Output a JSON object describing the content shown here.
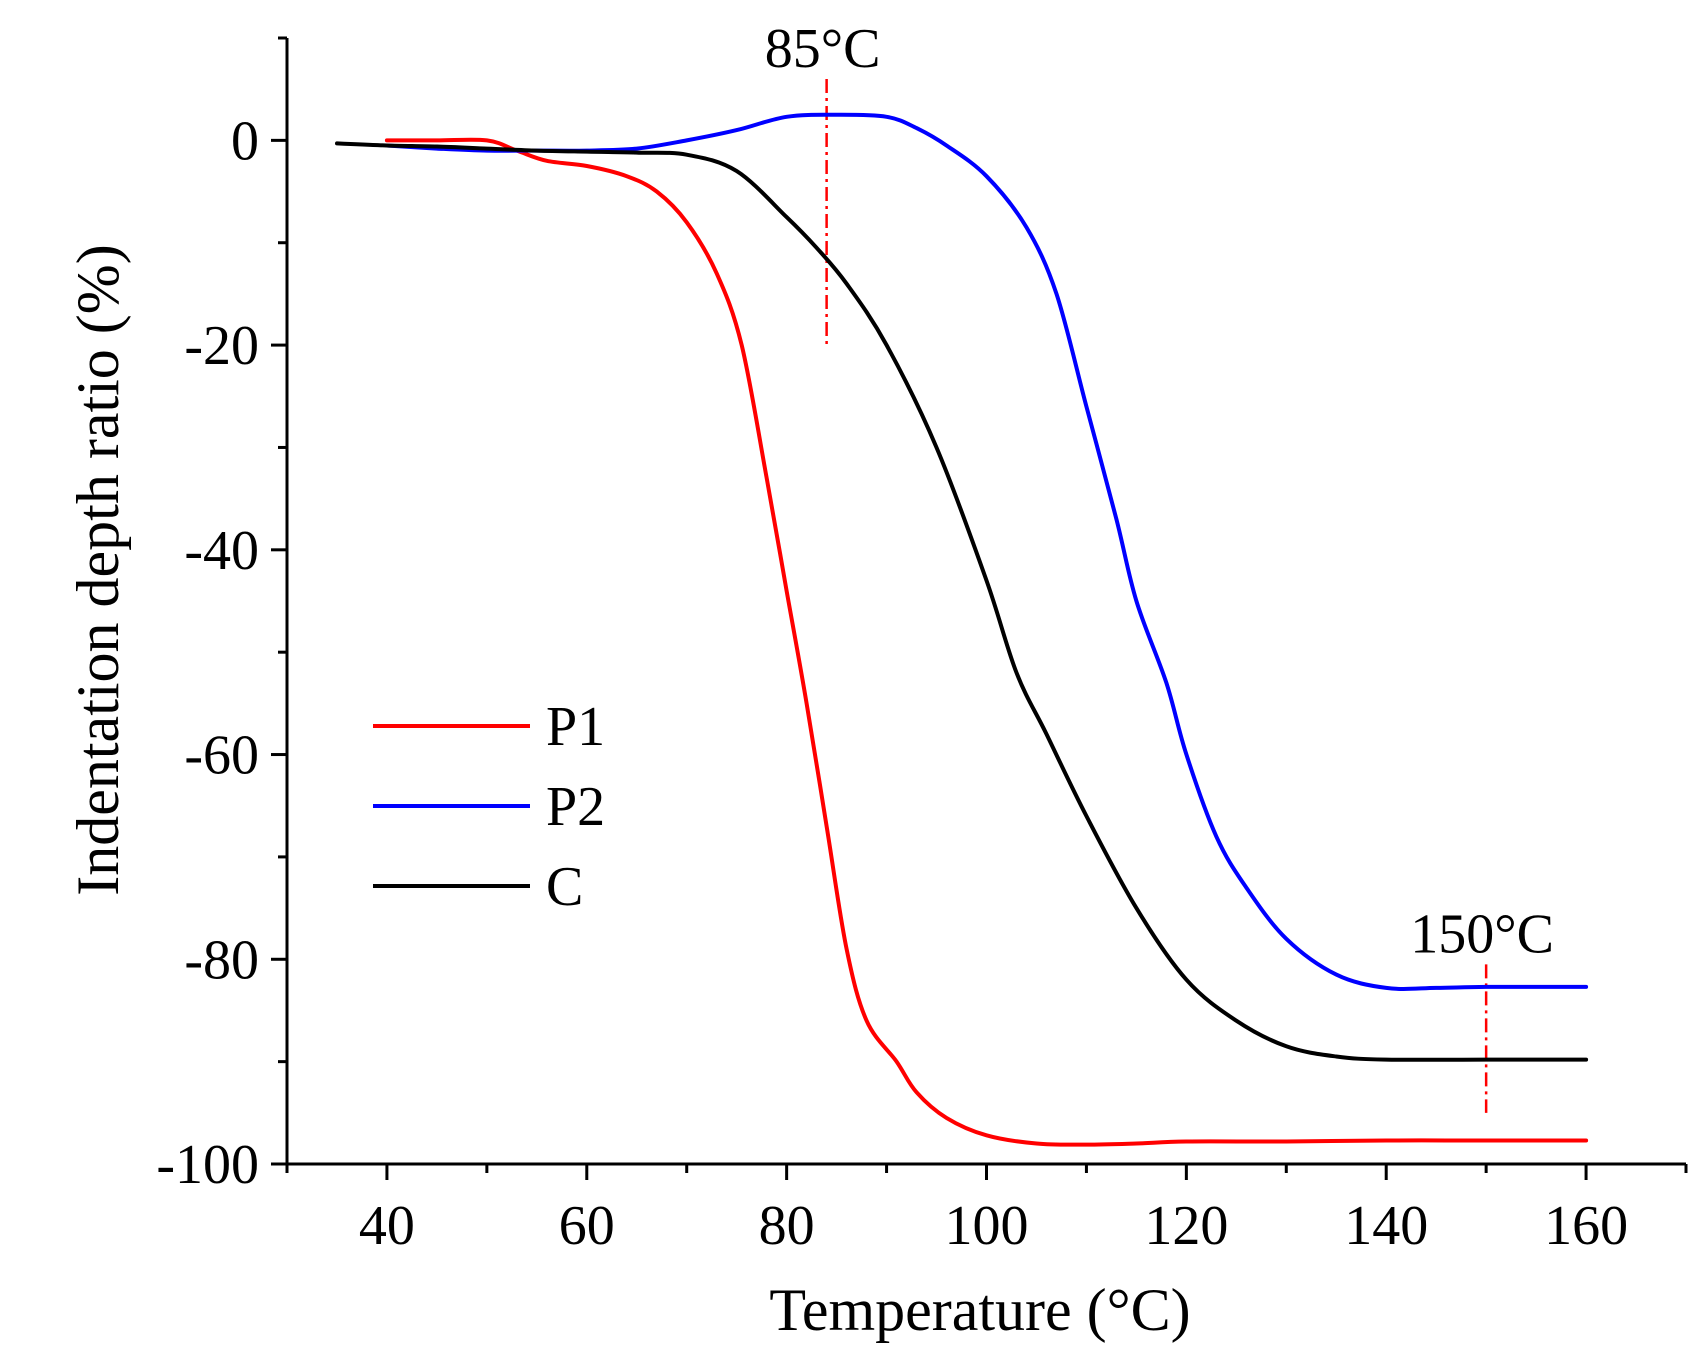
{
  "chart_data": {
    "type": "line",
    "xlabel": "Temperature (°C)",
    "ylabel": "Indentation depth ratio (%)",
    "xlim": [
      30,
      170
    ],
    "ylim": [
      -100,
      10
    ],
    "xticks": [
      40,
      60,
      80,
      100,
      120,
      140,
      160
    ],
    "yticks": [
      0,
      -20,
      -40,
      -60,
      -80,
      -100
    ],
    "xtick_labels": [
      "40",
      "60",
      "80",
      "100",
      "120",
      "140",
      "160"
    ],
    "ytick_labels": [
      "0",
      "-20",
      "-40",
      "-60",
      "-80",
      "-100"
    ],
    "grid": false,
    "legend_position": "center-left",
    "series": [
      {
        "name": "P1",
        "color": "#ff0000",
        "x": [
          40,
          45,
          50,
          53,
          56,
          60,
          64,
          67,
          70,
          73,
          75.5,
          78,
          80,
          82,
          84,
          86,
          88,
          91,
          93,
          96,
          100,
          105,
          110,
          115,
          120,
          130,
          140,
          150,
          160
        ],
        "y": [
          0,
          0,
          0,
          -1,
          -2,
          -2.5,
          -3.5,
          -5,
          -8,
          -13,
          -20,
          -33,
          -44,
          -55,
          -67,
          -79,
          -86,
          -90,
          -93,
          -95.5,
          -97.2,
          -98,
          -98.1,
          -98,
          -97.8,
          -97.8,
          -97.7,
          -97.7,
          -97.7
        ]
      },
      {
        "name": "P2",
        "color": "#0000ff",
        "x": [
          40,
          45,
          50,
          55,
          60,
          65,
          70,
          75,
          80,
          85,
          90,
          93,
          96,
          100,
          104,
          107,
          110,
          113,
          115,
          118,
          120,
          123,
          126,
          130,
          135,
          140,
          145,
          150,
          160
        ],
        "y": [
          -0.5,
          -0.8,
          -1,
          -1,
          -1,
          -0.8,
          0,
          1,
          2.3,
          2.5,
          2.3,
          1.2,
          -0.5,
          -3.5,
          -8.5,
          -15,
          -26,
          -37,
          -45,
          -53,
          -60,
          -68,
          -73,
          -78,
          -81.5,
          -82.8,
          -82.8,
          -82.7,
          -82.7
        ]
      },
      {
        "name": "C",
        "color": "#000000",
        "x": [
          35,
          40,
          45,
          50,
          55,
          60,
          65,
          70,
          75,
          80,
          83,
          86,
          90,
          95,
          100,
          103,
          106,
          110,
          115,
          120,
          125,
          130,
          135,
          140,
          150,
          160
        ],
        "y": [
          -0.3,
          -0.5,
          -0.6,
          -0.8,
          -1,
          -1.1,
          -1.2,
          -1.4,
          -3,
          -7.5,
          -10.5,
          -14,
          -20,
          -30,
          -43,
          -52,
          -58,
          -66,
          -75,
          -82,
          -86,
          -88.5,
          -89.5,
          -89.8,
          -89.8,
          -89.8
        ]
      }
    ],
    "annotations": [
      {
        "text": "85°C",
        "x": 84,
        "y_from": 6,
        "y_to": -20,
        "color": "#ff0000"
      },
      {
        "text": "150°C",
        "x": 150,
        "y_from": -80.5,
        "y_to": -95,
        "color": "#ff0000"
      }
    ]
  }
}
